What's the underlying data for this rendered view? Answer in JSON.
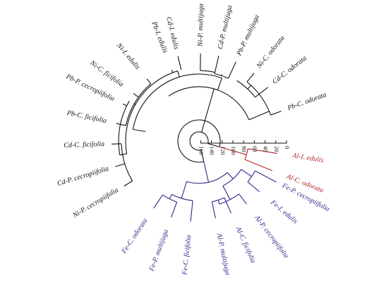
{
  "colors": {
    "black": "#111111",
    "red": "#b22222",
    "blue": "#2a2a8c"
  },
  "scale_ticks": [
    "0",
    "20",
    "40",
    "60",
    "80",
    "100",
    "120",
    "140",
    "160"
  ],
  "leaves": [
    {
      "label": "Pb-C. odorata",
      "group": "black"
    },
    {
      "label": "Cd-C. odorata",
      "group": "black"
    },
    {
      "label": "Ni-C. odorata",
      "group": "black"
    },
    {
      "label": "Pb-P. multijuga",
      "group": "black"
    },
    {
      "label": "Cd-P. multijuga",
      "group": "black"
    },
    {
      "label": "Ni-P. multijuga",
      "group": "black"
    },
    {
      "label": "Cd-I. edulis",
      "group": "black"
    },
    {
      "label": "Pb-I. edulis",
      "group": "black"
    },
    {
      "label": "Ni-I. edulis",
      "group": "black"
    },
    {
      "label": "Ni-C. ficifolia",
      "group": "black"
    },
    {
      "label": "Pb-P. cecropiifolia",
      "group": "black"
    },
    {
      "label": "Pb-C. ficifolia",
      "group": "black"
    },
    {
      "label": "Cd-C. ficifolia",
      "group": "black"
    },
    {
      "label": "Cd-P. cecropiifolia",
      "group": "black"
    },
    {
      "label": "Ni-P. cecropiifolia",
      "group": "black"
    },
    {
      "label": "Fe-C. odorata",
      "group": "blue"
    },
    {
      "label": "Fe-P. multijuga",
      "group": "blue"
    },
    {
      "label": "Fe-C. ficifolia",
      "group": "blue"
    },
    {
      "label": "Al-P. multijuga",
      "group": "blue"
    },
    {
      "label": "Al-C. ficifolia",
      "group": "blue"
    },
    {
      "label": "Al-P. cecropiifolia",
      "group": "blue"
    },
    {
      "label": "Fe-I. edulis",
      "group": "blue"
    },
    {
      "label": "Fe-P. cecropiifolia",
      "group": "blue"
    },
    {
      "label": "Al-C. odorata",
      "group": "red"
    },
    {
      "label": "Al-I. edulis",
      "group": "red"
    }
  ]
}
